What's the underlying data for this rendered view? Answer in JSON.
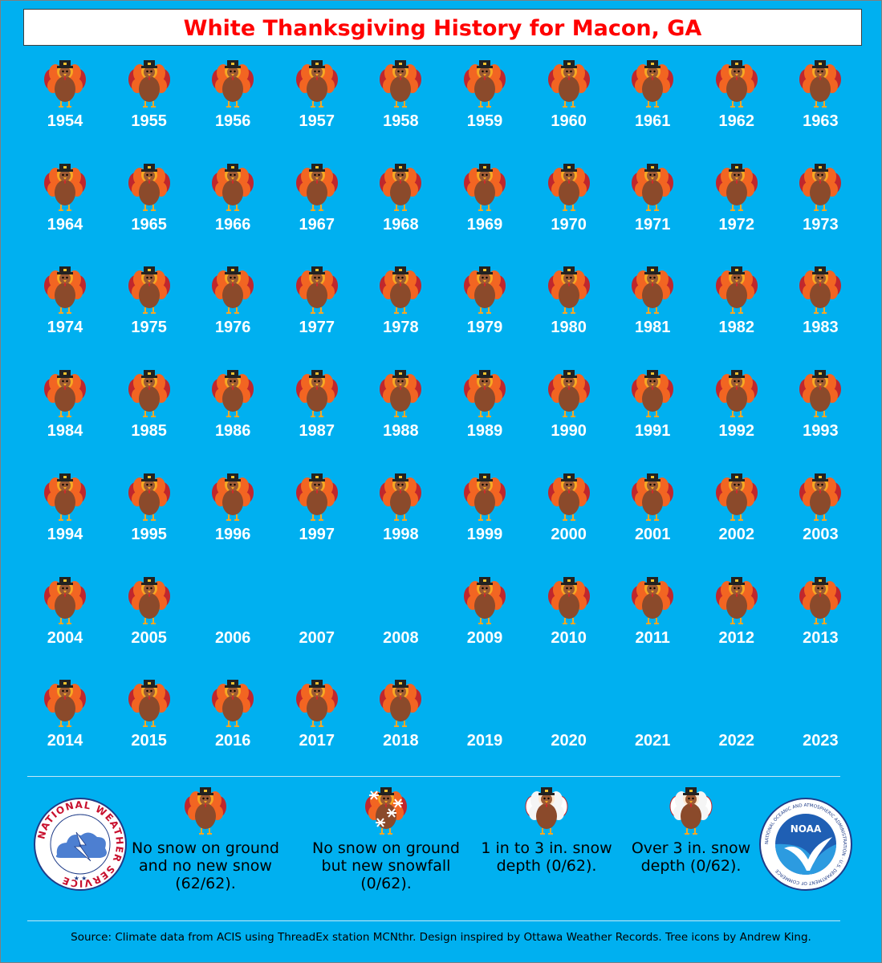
{
  "title": "White Thanksgiving History for Macon, GA",
  "years": [
    {
      "year": "1954",
      "status": "none"
    },
    {
      "year": "1955",
      "status": "none"
    },
    {
      "year": "1956",
      "status": "none"
    },
    {
      "year": "1957",
      "status": "none"
    },
    {
      "year": "1958",
      "status": "none"
    },
    {
      "year": "1959",
      "status": "none"
    },
    {
      "year": "1960",
      "status": "none"
    },
    {
      "year": "1961",
      "status": "none"
    },
    {
      "year": "1962",
      "status": "none"
    },
    {
      "year": "1963",
      "status": "none"
    },
    {
      "year": "1964",
      "status": "none"
    },
    {
      "year": "1965",
      "status": "none"
    },
    {
      "year": "1966",
      "status": "none"
    },
    {
      "year": "1967",
      "status": "none"
    },
    {
      "year": "1968",
      "status": "none"
    },
    {
      "year": "1969",
      "status": "none"
    },
    {
      "year": "1970",
      "status": "none"
    },
    {
      "year": "1971",
      "status": "none"
    },
    {
      "year": "1972",
      "status": "none"
    },
    {
      "year": "1973",
      "status": "none"
    },
    {
      "year": "1974",
      "status": "none"
    },
    {
      "year": "1975",
      "status": "none"
    },
    {
      "year": "1976",
      "status": "none"
    },
    {
      "year": "1977",
      "status": "none"
    },
    {
      "year": "1978",
      "status": "none"
    },
    {
      "year": "1979",
      "status": "none"
    },
    {
      "year": "1980",
      "status": "none"
    },
    {
      "year": "1981",
      "status": "none"
    },
    {
      "year": "1982",
      "status": "none"
    },
    {
      "year": "1983",
      "status": "none"
    },
    {
      "year": "1984",
      "status": "none"
    },
    {
      "year": "1985",
      "status": "none"
    },
    {
      "year": "1986",
      "status": "none"
    },
    {
      "year": "1987",
      "status": "none"
    },
    {
      "year": "1988",
      "status": "none"
    },
    {
      "year": "1989",
      "status": "none"
    },
    {
      "year": "1990",
      "status": "none"
    },
    {
      "year": "1991",
      "status": "none"
    },
    {
      "year": "1992",
      "status": "none"
    },
    {
      "year": "1993",
      "status": "none"
    },
    {
      "year": "1994",
      "status": "none"
    },
    {
      "year": "1995",
      "status": "none"
    },
    {
      "year": "1996",
      "status": "none"
    },
    {
      "year": "1997",
      "status": "none"
    },
    {
      "year": "1998",
      "status": "none"
    },
    {
      "year": "1999",
      "status": "none"
    },
    {
      "year": "2000",
      "status": "none"
    },
    {
      "year": "2001",
      "status": "none"
    },
    {
      "year": "2002",
      "status": "none"
    },
    {
      "year": "2003",
      "status": "none"
    },
    {
      "year": "2004",
      "status": "none"
    },
    {
      "year": "2005",
      "status": "none"
    },
    {
      "year": "2006",
      "status": "missing"
    },
    {
      "year": "2007",
      "status": "missing"
    },
    {
      "year": "2008",
      "status": "missing"
    },
    {
      "year": "2009",
      "status": "none"
    },
    {
      "year": "2010",
      "status": "none"
    },
    {
      "year": "2011",
      "status": "none"
    },
    {
      "year": "2012",
      "status": "none"
    },
    {
      "year": "2013",
      "status": "none"
    },
    {
      "year": "2014",
      "status": "none"
    },
    {
      "year": "2015",
      "status": "none"
    },
    {
      "year": "2016",
      "status": "none"
    },
    {
      "year": "2017",
      "status": "none"
    },
    {
      "year": "2018",
      "status": "none"
    },
    {
      "year": "2019",
      "status": "missing"
    },
    {
      "year": "2020",
      "status": "missing"
    },
    {
      "year": "2021",
      "status": "missing"
    },
    {
      "year": "2022",
      "status": "missing"
    },
    {
      "year": "2023",
      "status": "missing"
    }
  ],
  "legend": [
    {
      "icon": "turkey-icon",
      "text": "No snow on ground and no new snow (62/62)."
    },
    {
      "icon": "turkey-snowfall-icon",
      "text": "No snow on ground but new snowfall (0/62)."
    },
    {
      "icon": "turkey-light-snow-icon",
      "text": "1 in to 3 in. snow depth (0/62)."
    },
    {
      "icon": "turkey-heavy-snow-icon",
      "text": "Over 3 in. snow depth (0/62)."
    }
  ],
  "source": "Source: Climate data from ACIS using ThreadEx station MCNthr. Design inspired by Ottawa Weather Records. Tree icons by Andrew King.",
  "logos": {
    "nws_text": "NATIONAL WEATHER SERVICE",
    "noaa_text": "NOAA",
    "noaa_ring_text": "NATIONAL OCEANIC AND ATMOSPHERIC ADMINISTRATION · U.S. DEPARTMENT OF COMMERCE"
  },
  "colors": {
    "background": "#00b0f0",
    "title": "#ff0000",
    "year_text": "#ffffff",
    "turkey_body": "#8b4a2b",
    "turkey_feather_red": "#c0272d",
    "turkey_feather_orange": "#f26522",
    "turkey_feather_yellow": "#f7a823"
  }
}
